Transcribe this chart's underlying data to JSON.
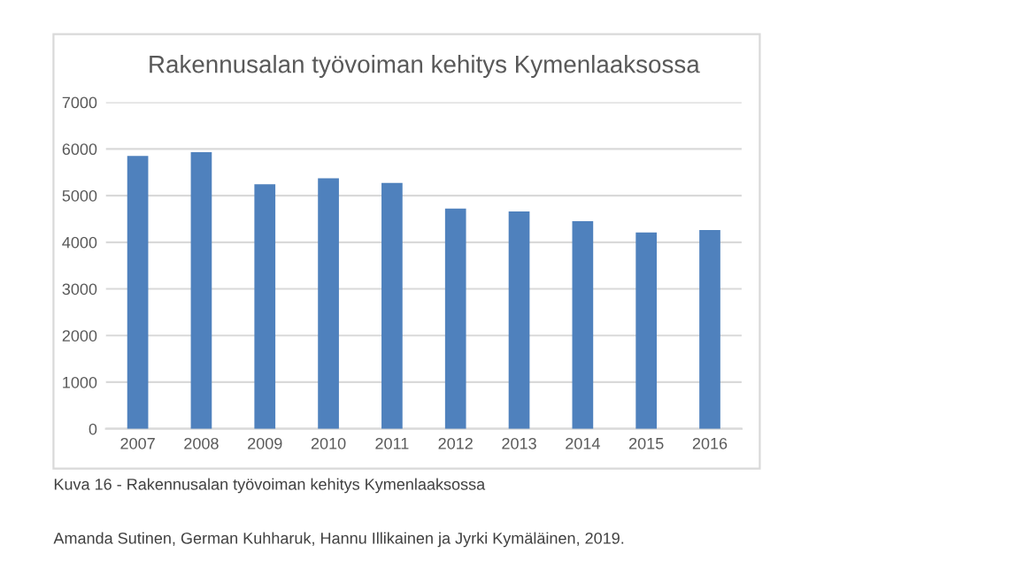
{
  "chart_data": {
    "type": "bar",
    "title": "Rakennusalan työvoiman kehitys Kymenlaaksossa",
    "categories": [
      "2007",
      "2008",
      "2009",
      "2010",
      "2011",
      "2012",
      "2013",
      "2014",
      "2015",
      "2016"
    ],
    "values": [
      5850,
      5930,
      5240,
      5370,
      5270,
      4720,
      4660,
      4450,
      4210,
      4260
    ],
    "color": "#4f81bd",
    "ylim": [
      0,
      7000
    ],
    "yticks": [
      0,
      1000,
      2000,
      3000,
      4000,
      5000,
      6000,
      7000
    ],
    "grid": "y",
    "annotations": [
      "Kuva 16 - Rakennusalan työvoiman kehitys Kymenlaaksossa",
      "Amanda Sutinen, German Kuhharuk, Hannu Illikainen ja Jyrki Kymäläinen, 2019."
    ]
  }
}
